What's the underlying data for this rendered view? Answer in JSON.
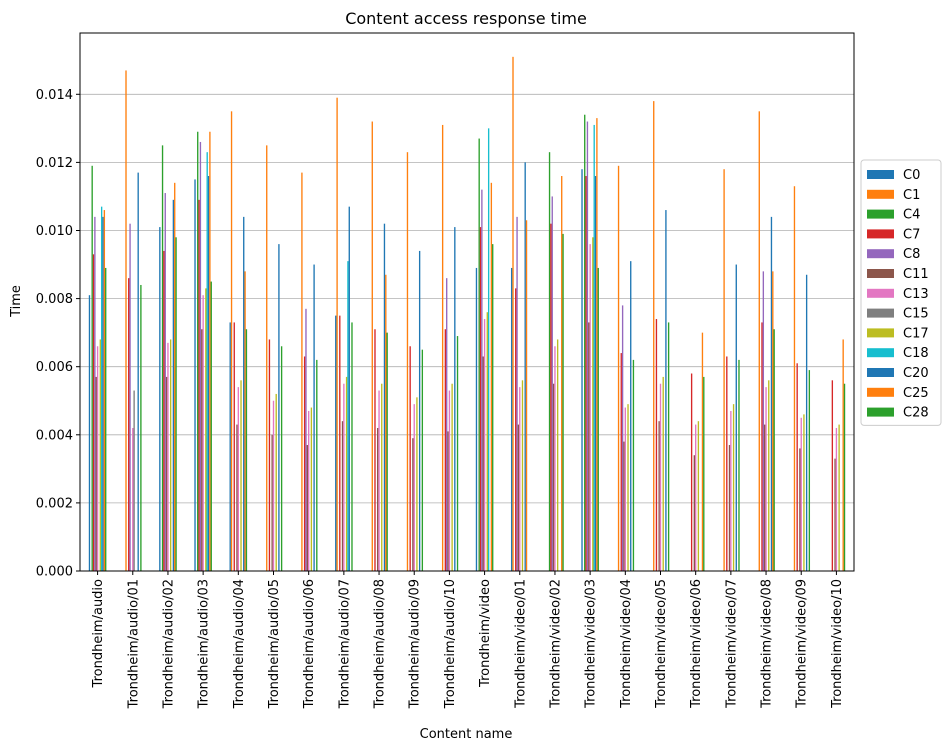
{
  "chart_data": {
    "type": "bar",
    "title": "Content access response time",
    "xlabel": "Content name",
    "ylabel": "Time",
    "ylim": [
      0,
      0.0158
    ],
    "yticks": [
      "0.000",
      "0.002",
      "0.004",
      "0.006",
      "0.008",
      "0.010",
      "0.012",
      "0.014"
    ],
    "grid": "horizontal",
    "legend_position": "right",
    "categories": [
      "Trondheim/audio",
      "Trondheim/audio/01",
      "Trondheim/audio/02",
      "Trondheim/audio/03",
      "Trondheim/audio/04",
      "Trondheim/audio/05",
      "Trondheim/audio/06",
      "Trondheim/audio/07",
      "Trondheim/audio/08",
      "Trondheim/audio/09",
      "Trondheim/audio/10",
      "Trondheim/video",
      "Trondheim/video/01",
      "Trondheim/video/02",
      "Trondheim/video/03",
      "Trondheim/video/04",
      "Trondheim/video/05",
      "Trondheim/video/06",
      "Trondheim/video/07",
      "Trondheim/video/08",
      "Trondheim/video/09",
      "Trondheim/video/10"
    ],
    "series": [
      {
        "name": "C0",
        "color": "#1f77b4",
        "values": [
          0.0081,
          0.0,
          0.0101,
          0.0115,
          0.0073,
          0.0,
          0.0,
          0.0075,
          0.0,
          0.0,
          0.0,
          0.0089,
          0.0089,
          0.0,
          0.0118,
          0.0,
          0.0,
          0.0,
          0.0,
          0.0,
          0.0,
          0.0
        ]
      },
      {
        "name": "C1",
        "color": "#ff7f0e",
        "values": [
          0.0,
          0.0147,
          0.0,
          0.0,
          0.0135,
          0.0125,
          0.0117,
          0.0139,
          0.0132,
          0.0123,
          0.0131,
          0.0,
          0.0151,
          0.0,
          0.0,
          0.0119,
          0.0138,
          0.0,
          0.0118,
          0.0135,
          0.0113,
          0.0
        ]
      },
      {
        "name": "C4",
        "color": "#2ca02c",
        "values": [
          0.0119,
          0.0,
          0.0125,
          0.0129,
          0.0,
          0.0,
          0.0,
          0.0,
          0.0,
          0.0,
          0.0,
          0.0127,
          0.0,
          0.0123,
          0.0134,
          0.0,
          0.0,
          0.0,
          0.0,
          0.0,
          0.0,
          0.0
        ]
      },
      {
        "name": "C7",
        "color": "#d62728",
        "values": [
          0.0093,
          0.0086,
          0.0094,
          0.0109,
          0.0073,
          0.0068,
          0.0063,
          0.0075,
          0.0071,
          0.0066,
          0.0071,
          0.0101,
          0.0083,
          0.0102,
          0.0116,
          0.0064,
          0.0074,
          0.0058,
          0.0063,
          0.0073,
          0.0061,
          0.0056
        ]
      },
      {
        "name": "C8",
        "color": "#9467bd",
        "values": [
          0.0104,
          0.0102,
          0.0111,
          0.0126,
          0.0,
          0.0,
          0.0077,
          0.0,
          0.0,
          0.0,
          0.0086,
          0.0112,
          0.0104,
          0.011,
          0.0132,
          0.0078,
          0.0,
          0.0,
          0.0,
          0.0088,
          0.0,
          0.0
        ]
      },
      {
        "name": "C11",
        "color": "#8c564b",
        "values": [
          0.0057,
          0.0,
          0.0057,
          0.0071,
          0.0043,
          0.004,
          0.0037,
          0.0044,
          0.0042,
          0.0039,
          0.0041,
          0.0063,
          0.0043,
          0.0055,
          0.0073,
          0.0038,
          0.0044,
          0.0034,
          0.0037,
          0.0043,
          0.0036,
          0.0033
        ]
      },
      {
        "name": "C13",
        "color": "#e377c2",
        "values": [
          0.0066,
          0.0042,
          0.0067,
          0.0081,
          0.0054,
          0.005,
          0.0047,
          0.0055,
          0.0053,
          0.0049,
          0.0053,
          0.0074,
          0.0054,
          0.0066,
          0.0096,
          0.0048,
          0.0055,
          0.0043,
          0.0047,
          0.0054,
          0.0045,
          0.0042
        ]
      },
      {
        "name": "C15",
        "color": "#7f7f7f",
        "values": [
          0.0,
          0.0053,
          0.0,
          0.0,
          0.0,
          0.0,
          0.0,
          0.0,
          0.0,
          0.0,
          0.0,
          0.0,
          0.0,
          0.0,
          0.0,
          0.0,
          0.0,
          0.0,
          0.0,
          0.0,
          0.0,
          0.0
        ]
      },
      {
        "name": "C17",
        "color": "#bcbd22",
        "values": [
          0.0068,
          0.0,
          0.0068,
          0.0083,
          0.0056,
          0.0052,
          0.0048,
          0.0057,
          0.0055,
          0.0051,
          0.0055,
          0.0076,
          0.0056,
          0.0068,
          0.0098,
          0.0049,
          0.0057,
          0.0044,
          0.0049,
          0.0056,
          0.0046,
          0.0043
        ]
      },
      {
        "name": "C18",
        "color": "#17becf",
        "values": [
          0.0107,
          0.0,
          0.0,
          0.0123,
          0.0,
          0.0,
          0.0,
          0.0091,
          0.0,
          0.0,
          0.0,
          0.013,
          0.0,
          0.0,
          0.0131,
          0.0,
          0.0,
          0.0,
          0.0,
          0.0,
          0.0,
          0.0
        ]
      },
      {
        "name": "C20",
        "color": "#1f77b4",
        "values": [
          0.0104,
          0.0117,
          0.0109,
          0.0116,
          0.0104,
          0.0096,
          0.009,
          0.0107,
          0.0102,
          0.0094,
          0.0101,
          0.0,
          0.012,
          0.0,
          0.0116,
          0.0091,
          0.0106,
          0.0,
          0.009,
          0.0104,
          0.0087,
          0.0
        ]
      },
      {
        "name": "C25",
        "color": "#ff7f0e",
        "values": [
          0.0106,
          0.0,
          0.0114,
          0.0129,
          0.0088,
          0.0,
          0.0,
          0.0,
          0.0087,
          0.0,
          0.0,
          0.0114,
          0.0103,
          0.0116,
          0.0133,
          0.0,
          0.0,
          0.007,
          0.0,
          0.0088,
          0.0,
          0.0068
        ]
      },
      {
        "name": "C28",
        "color": "#2ca02c",
        "values": [
          0.0089,
          0.0084,
          0.0098,
          0.0085,
          0.0071,
          0.0066,
          0.0062,
          0.0073,
          0.007,
          0.0065,
          0.0069,
          0.0096,
          0.0,
          0.0099,
          0.0089,
          0.0062,
          0.0073,
          0.0057,
          0.0062,
          0.0071,
          0.0059,
          0.0055
        ]
      }
    ]
  }
}
